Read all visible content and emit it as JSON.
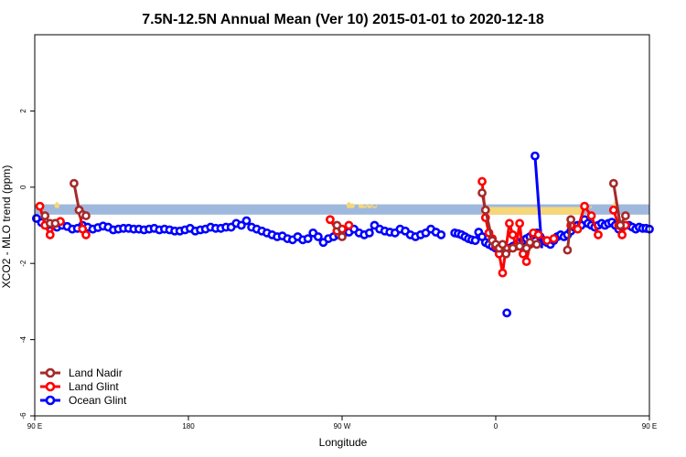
{
  "chart_data": {
    "type": "line",
    "title": "7.5N-12.5N Annual Mean (Ver 10)   2015-01-01 to 2020-12-18",
    "xlabel": "Longitude",
    "ylabel": "XCO2 - MLO trend (ppm)",
    "xlim": [
      -90,
      270
    ],
    "ylim": [
      -6,
      4
    ],
    "x_ticks": [
      {
        "value": -90,
        "label": "90 E"
      },
      {
        "value": 0,
        "label": "180"
      },
      {
        "value": 90,
        "label": "90 W"
      },
      {
        "value": 180,
        "label": "0"
      },
      {
        "value": 270,
        "label": "90 E"
      },
      {
        "value": 360,
        "label": "180"
      }
    ],
    "y_ticks": [
      -6,
      -4,
      -2,
      0,
      2
    ],
    "grid": false,
    "legend_position": "bottom-left",
    "band": {
      "ymin": -0.72,
      "ymax": -0.45,
      "color": "#9fb8dd",
      "bumps_color": "#f5d77a",
      "bumps": [
        {
          "x": -77,
          "top": -0.38
        },
        {
          "x": 94,
          "top": -0.38
        },
        {
          "x": 96,
          "top": -0.42
        },
        {
          "x": 101,
          "top": -0.45
        },
        {
          "x": 103,
          "top": -0.5
        },
        {
          "x": 106,
          "top": -0.48
        },
        {
          "x": 109,
          "top": -0.52
        },
        {
          "x": 250,
          "top": -0.35
        },
        {
          "x": 235,
          "top": -0.55
        }
      ],
      "fills": [
        {
          "x0": 172,
          "x1": 232,
          "yb": -0.72,
          "yt": -0.52
        }
      ]
    },
    "series": [
      {
        "name": "Land Nadir",
        "color": "#a52a2a",
        "segments": [
          {
            "x": [
              -84,
              -81,
              -78
            ],
            "y": [
              -0.75,
              -0.95,
              -0.95
            ]
          },
          {
            "x": [
              -67,
              -64,
              -62,
              -60
            ],
            "y": [
              0.1,
              -0.6,
              -0.72,
              -0.75
            ]
          },
          {
            "x": [
              87,
              90
            ],
            "y": [
              -1.0,
              -1.3
            ]
          },
          {
            "x": [
              172,
              174,
              178,
              180,
              182
            ],
            "y": [
              -0.15,
              -0.6,
              -1.4,
              -1.5,
              -1.6
            ]
          },
          {
            "x": [
              182,
              184,
              186,
              190,
              194,
              198,
              200,
              204
            ],
            "y": [
              -1.6,
              -1.5,
              -1.75,
              -1.6,
              -1.55,
              -1.6,
              -1.45,
              -1.5
            ]
          },
          {
            "x": [
              222,
              224
            ],
            "y": [
              -1.65,
              -0.85
            ]
          },
          {
            "x": [
              249,
              253,
              256
            ],
            "y": [
              0.1,
              -1.0,
              -0.75
            ]
          }
        ]
      },
      {
        "name": "Land Glint",
        "color": "#ff0000",
        "segments": [
          {
            "x": [
              -87,
              -84,
              -81,
              -78,
              -75
            ],
            "y": [
              -0.5,
              -1.0,
              -1.25,
              -0.95,
              -0.9
            ]
          },
          {
            "x": [
              -64,
              -62,
              -60
            ],
            "y": [
              -0.6,
              -1.1,
              -1.25
            ]
          },
          {
            "x": [
              83,
              87,
              90,
              94
            ],
            "y": [
              -0.85,
              -1.15,
              -1.1,
              -1.0
            ]
          },
          {
            "x": [
              172,
              174,
              176,
              178,
              180
            ],
            "y": [
              0.15,
              -0.8,
              -1.2,
              -1.35,
              -1.55
            ]
          },
          {
            "x": [
              180,
              182,
              184,
              186,
              188,
              190,
              192,
              194,
              196,
              198,
              200,
              202
            ],
            "y": [
              -1.55,
              -1.75,
              -2.25,
              -1.6,
              -0.95,
              -1.25,
              -1.55,
              -0.95,
              -1.75,
              -1.95,
              -1.5,
              -1.2
            ]
          },
          {
            "x": [
              205,
              210,
              214
            ],
            "y": [
              -1.25,
              -1.4,
              -1.35
            ]
          },
          {
            "x": [
              224,
              228,
              232,
              236,
              240
            ],
            "y": [
              -1.0,
              -1.1,
              -0.5,
              -0.75,
              -1.25
            ]
          },
          {
            "x": [
              249,
              252,
              254,
              256
            ],
            "y": [
              -0.6,
              -1.0,
              -1.25,
              -1.0
            ]
          }
        ]
      },
      {
        "name": "Ocean Glint",
        "color": "#0000ff",
        "segments": [
          {
            "x": [
              -89,
              -86,
              -83,
              -80,
              -77,
              -74,
              -71,
              -68,
              -65,
              -62,
              -59,
              -56,
              -53,
              -50,
              -47,
              -44,
              -41,
              -38,
              -35,
              -32,
              -29,
              -26,
              -23,
              -20,
              -17,
              -14,
              -11,
              -8,
              -5,
              -2,
              1,
              4,
              7,
              10,
              13,
              16,
              19,
              22,
              25,
              28,
              31,
              34,
              37,
              40,
              43,
              46,
              49,
              52,
              55,
              58,
              61,
              64,
              67,
              70,
              73,
              76,
              79,
              82,
              85,
              88,
              91,
              94,
              97,
              100,
              103,
              106,
              109,
              112,
              115,
              118,
              121,
              124,
              127,
              130,
              133,
              136,
              139,
              142,
              145,
              148
            ],
            "y": [
              -0.82,
              -0.93,
              -1.0,
              -0.98,
              -1.05,
              -1.0,
              -1.03,
              -1.1,
              -1.08,
              -1.0,
              -1.05,
              -1.1,
              -1.06,
              -1.02,
              -1.05,
              -1.12,
              -1.1,
              -1.08,
              -1.08,
              -1.1,
              -1.1,
              -1.12,
              -1.1,
              -1.08,
              -1.12,
              -1.1,
              -1.12,
              -1.15,
              -1.15,
              -1.12,
              -1.08,
              -1.15,
              -1.12,
              -1.1,
              -1.05,
              -1.08,
              -1.08,
              -1.05,
              -1.05,
              -0.95,
              -1.0,
              -0.88,
              -1.05,
              -1.1,
              -1.15,
              -1.2,
              -1.25,
              -1.3,
              -1.28,
              -1.35,
              -1.38,
              -1.3,
              -1.38,
              -1.35,
              -1.2,
              -1.3,
              -1.45,
              -1.35,
              -1.3,
              -1.25,
              -1.2,
              -1.18,
              -1.1,
              -1.2,
              -1.25,
              -1.2,
              -1.0,
              -1.1,
              -1.15,
              -1.18,
              -1.2,
              -1.1,
              -1.15,
              -1.25,
              -1.3,
              -1.25,
              -1.2,
              -1.1,
              -1.18,
              -1.25
            ]
          }
        ]
      }
    ],
    "ocean_extra": {
      "x": [
        156,
        158,
        160,
        162,
        164,
        166,
        168,
        170,
        172,
        174,
        176,
        178,
        180,
        182,
        184,
        186,
        188,
        190,
        192,
        194,
        196,
        198,
        200,
        202,
        204,
        206,
        208,
        210,
        212,
        214,
        216,
        218,
        220,
        222,
        224,
        226,
        228,
        230,
        232,
        234,
        236,
        238,
        240,
        242,
        244,
        246,
        248,
        250,
        252,
        254,
        256,
        258,
        260,
        262,
        264,
        266,
        268,
        270
      ],
      "y": [
        -1.2,
        -1.22,
        -1.25,
        -1.3,
        -1.35,
        -1.38,
        -1.4,
        -1.18,
        -1.3,
        -1.45,
        -1.5,
        -1.55,
        -1.6,
        -1.65,
        -1.7,
        -1.7,
        -1.6,
        -1.55,
        -1.5,
        -1.45,
        -1.4,
        -1.35,
        -1.3,
        -1.25,
        -1.2,
        -1.3,
        -1.4,
        -1.45,
        -1.5,
        -1.4,
        -1.3,
        -1.25,
        -1.3,
        -1.25,
        -1.15,
        -1.05,
        -1.0,
        -1.0,
        -0.85,
        -0.95,
        -1.0,
        -1.05,
        -1.0,
        -0.95,
        -1.0,
        -0.95,
        -0.92,
        -1.0,
        -1.1,
        -1.05,
        -1.0,
        -1.0,
        -1.05,
        -1.1,
        -1.05,
        -1.08,
        -1.08,
        -1.1
      ]
    }
  }
}
